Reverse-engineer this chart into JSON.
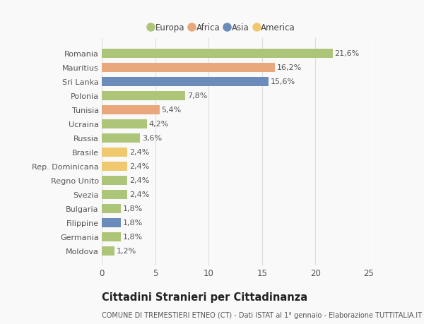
{
  "countries": [
    "Romania",
    "Mauritius",
    "Sri Lanka",
    "Polonia",
    "Tunisia",
    "Ucraina",
    "Russia",
    "Brasile",
    "Rep. Dominicana",
    "Regno Unito",
    "Svezia",
    "Bulgaria",
    "Filippine",
    "Germania",
    "Moldova"
  ],
  "values": [
    21.6,
    16.2,
    15.6,
    7.8,
    5.4,
    4.2,
    3.6,
    2.4,
    2.4,
    2.4,
    2.4,
    1.8,
    1.8,
    1.8,
    1.2
  ],
  "labels": [
    "21,6%",
    "16,2%",
    "15,6%",
    "7,8%",
    "5,4%",
    "4,2%",
    "3,6%",
    "2,4%",
    "2,4%",
    "2,4%",
    "2,4%",
    "1,8%",
    "1,8%",
    "1,8%",
    "1,2%"
  ],
  "continents": [
    "Europa",
    "Africa",
    "Asia",
    "Europa",
    "Africa",
    "Europa",
    "Europa",
    "America",
    "America",
    "Europa",
    "Europa",
    "Europa",
    "Asia",
    "Europa",
    "Europa"
  ],
  "continent_colors": {
    "Europa": "#adc579",
    "Africa": "#e8a87c",
    "Asia": "#6b8cba",
    "America": "#f0c96e"
  },
  "legend_order": [
    "Europa",
    "Africa",
    "Asia",
    "America"
  ],
  "xlim": [
    0,
    25
  ],
  "xticks": [
    0,
    5,
    10,
    15,
    20,
    25
  ],
  "title": "Cittadini Stranieri per Cittadinanza",
  "subtitle": "COMUNE DI TREMESTIERI ETNEO (CT) - Dati ISTAT al 1° gennaio - Elaborazione TUTTITALIA.IT",
  "bg_color": "#f9f9f9",
  "grid_color": "#dddddd",
  "bar_height": 0.65,
  "label_fontsize": 8.0,
  "ytick_fontsize": 8.0,
  "xtick_fontsize": 8.5,
  "title_fontsize": 10.5,
  "subtitle_fontsize": 7.0,
  "legend_fontsize": 8.5
}
